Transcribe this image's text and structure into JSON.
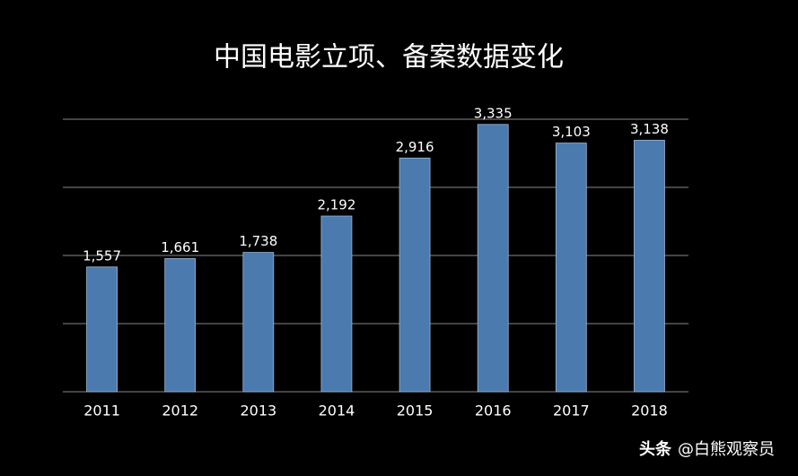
{
  "chart_data": {
    "type": "bar",
    "title": "中国电影立项、备案数据变化",
    "categories": [
      "2011",
      "2012",
      "2013",
      "2014",
      "2015",
      "2016",
      "2017",
      "2018"
    ],
    "values": [
      1557,
      1661,
      1738,
      2192,
      2916,
      3335,
      3103,
      3138
    ],
    "value_labels": [
      "1,557",
      "1,661",
      "1,738",
      "2,192",
      "2,916",
      "3,335",
      "3,103",
      "3,138"
    ],
    "color": "#4a7aae",
    "ylim": [
      0,
      3400
    ],
    "yticks": [
      0,
      850,
      1700,
      2550,
      3400
    ],
    "grid": true
  },
  "watermark": {
    "app": "头条",
    "handle": "@白熊观察员"
  }
}
